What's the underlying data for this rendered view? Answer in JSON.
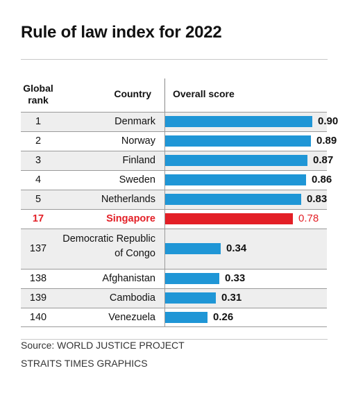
{
  "title": "Rule of law index for 2022",
  "headers": {
    "rank": "Global rank",
    "country": "Country",
    "score": "Overall score"
  },
  "colors": {
    "bar": "#1f96d6",
    "highlight": "#e31f26"
  },
  "source_lines": [
    "Source: WORLD JUSTICE PROJECT",
    "STRAITS TIMES GRAPHICS"
  ],
  "chart_data": {
    "type": "bar",
    "orientation": "horizontal",
    "title": "Rule of law index for 2022",
    "xlabel": "Overall score",
    "xlim": [
      0,
      1
    ],
    "rows": [
      {
        "rank": "1",
        "country": "Denmark",
        "score": 0.9,
        "label": "0.90",
        "highlight": false
      },
      {
        "rank": "2",
        "country": "Norway",
        "score": 0.89,
        "label": "0.89",
        "highlight": false
      },
      {
        "rank": "3",
        "country": "Finland",
        "score": 0.87,
        "label": "0.87",
        "highlight": false
      },
      {
        "rank": "4",
        "country": "Sweden",
        "score": 0.86,
        "label": "0.86",
        "highlight": false
      },
      {
        "rank": "5",
        "country": "Netherlands",
        "score": 0.83,
        "label": "0.83",
        "highlight": false
      },
      {
        "rank": "17",
        "country": "Singapore",
        "score": 0.78,
        "label": "0.78",
        "highlight": true
      },
      {
        "rank": "137",
        "country": "Democratic Republic of Congo",
        "score": 0.34,
        "label": "0.34",
        "highlight": false
      },
      {
        "rank": "138",
        "country": "Afghanistan",
        "score": 0.33,
        "label": "0.33",
        "highlight": false
      },
      {
        "rank": "139",
        "country": "Cambodia",
        "score": 0.31,
        "label": "0.31",
        "highlight": false
      },
      {
        "rank": "140",
        "country": "Venezuela",
        "score": 0.26,
        "label": "0.26",
        "highlight": false
      }
    ]
  }
}
